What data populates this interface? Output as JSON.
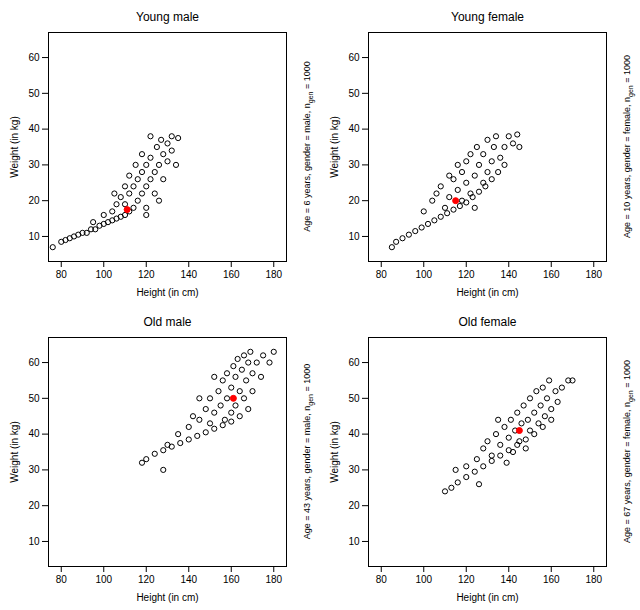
{
  "chart_data": [
    {
      "type": "scatter",
      "title": "Young male",
      "x_label": "Height (in cm)",
      "y_label": "Weight (in kg)",
      "annotation": {
        "text": "Age = 6 years, gender = male, n",
        "subscript": "gen",
        "after": " = 1000"
      },
      "xlim": [
        74,
        186
      ],
      "ylim": [
        3,
        67
      ],
      "xticks": [
        80,
        100,
        120,
        140,
        160,
        180
      ],
      "yticks": [
        10,
        20,
        30,
        40,
        50,
        60
      ],
      "series": [
        {
          "color": "black",
          "marker": "circle-open",
          "x": [
            76,
            80,
            82,
            84,
            86,
            88,
            90,
            92,
            94,
            96,
            98,
            100,
            102,
            104,
            106,
            108,
            110,
            112,
            95,
            100,
            104,
            106,
            108,
            110,
            112,
            114,
            114,
            116,
            116,
            118,
            118,
            120,
            120,
            120,
            122,
            122,
            124,
            124,
            125,
            126,
            127,
            128,
            128,
            130,
            130,
            132,
            132,
            134,
            135,
            115,
            118,
            112,
            110,
            105,
            122,
            126,
            120
          ],
          "values": [
            7,
            8.5,
            9,
            9.5,
            10,
            10.5,
            11,
            11,
            12,
            12,
            13,
            13.5,
            14,
            14.5,
            15,
            15.5,
            16,
            17,
            14,
            16,
            17,
            19,
            21,
            19,
            22,
            18,
            24,
            20,
            26,
            22,
            28,
            24,
            30,
            18,
            26,
            32,
            28,
            22,
            35,
            30,
            37,
            33,
            26,
            31,
            36,
            34,
            38,
            30,
            37.5,
            30,
            33,
            27,
            24,
            22,
            38,
            20,
            16
          ]
        },
        {
          "color": "red",
          "marker": "circle",
          "x": [
            111
          ],
          "values": [
            17.5
          ]
        }
      ]
    },
    {
      "type": "scatter",
      "title": "Young female",
      "x_label": "Height (in cm)",
      "y_label": "Weight (in kg)",
      "annotation": {
        "text": "Age = 10 years, gender = female, n",
        "subscript": "gen",
        "after": " = 1000"
      },
      "xlim": [
        74,
        186
      ],
      "ylim": [
        3,
        67
      ],
      "xticks": [
        80,
        100,
        120,
        140,
        160,
        180
      ],
      "yticks": [
        10,
        20,
        30,
        40,
        50,
        60
      ],
      "series": [
        {
          "color": "black",
          "marker": "circle-open",
          "x": [
            85,
            87,
            90,
            93,
            96,
            99,
            102,
            105,
            108,
            111,
            114,
            117,
            120,
            123,
            126,
            129,
            132,
            135,
            100,
            104,
            106,
            108,
            110,
            112,
            114,
            116,
            118,
            120,
            120,
            122,
            122,
            124,
            125,
            126,
            128,
            128,
            130,
            130,
            132,
            133,
            134,
            136,
            138,
            138,
            140,
            142,
            144,
            145,
            118,
            124,
            116,
            112
          ],
          "values": [
            7,
            8.5,
            9.5,
            10.5,
            11.5,
            12.5,
            13.5,
            14.5,
            15.5,
            16.5,
            17.5,
            18.5,
            19.5,
            21,
            22.5,
            24,
            26,
            28,
            17,
            20,
            22,
            24,
            18,
            21,
            26,
            23,
            28,
            25,
            31,
            22,
            33,
            27,
            35,
            30,
            25,
            33,
            37,
            28,
            31,
            35,
            38,
            32,
            35,
            30,
            38,
            36,
            38.5,
            35,
            20,
            18,
            30,
            27
          ]
        },
        {
          "color": "red",
          "marker": "circle",
          "x": [
            115
          ],
          "values": [
            20
          ]
        }
      ]
    },
    {
      "type": "scatter",
      "title": "Old male",
      "x_label": "Height (in cm)",
      "y_label": "Weight (in kg)",
      "annotation": {
        "text": "Age = 43 years, gender = male, n",
        "subscript": "gen",
        "after": " = 1000"
      },
      "xlim": [
        74,
        186
      ],
      "ylim": [
        3,
        67
      ],
      "xticks": [
        80,
        100,
        120,
        140,
        160,
        180
      ],
      "yticks": [
        10,
        20,
        30,
        40,
        50,
        60
      ],
      "series": [
        {
          "color": "black",
          "marker": "circle-open",
          "x": [
            118,
            120,
            124,
            128,
            132,
            136,
            140,
            144,
            148,
            152,
            156,
            160,
            164,
            168,
            130,
            135,
            140,
            142,
            145,
            148,
            150,
            150,
            152,
            154,
            155,
            156,
            157,
            158,
            158,
            160,
            160,
            161,
            162,
            162,
            163,
            164,
            165,
            166,
            166,
            167,
            168,
            169,
            170,
            170,
            172,
            174,
            175,
            178,
            180,
            128,
            145,
            152
          ],
          "values": [
            32,
            33,
            34.5,
            35.5,
            36.5,
            37.5,
            38.5,
            39.5,
            40.5,
            41.5,
            42.5,
            43.5,
            45,
            47,
            37,
            40,
            42,
            45,
            44,
            47,
            43,
            50,
            46,
            52,
            48,
            55,
            44,
            50,
            57,
            46,
            53,
            59,
            48,
            56,
            61,
            52,
            58,
            62,
            50,
            55,
            60,
            63,
            52,
            57,
            60,
            56,
            62,
            60,
            63,
            30,
            50,
            56
          ]
        },
        {
          "color": "red",
          "marker": "circle",
          "x": [
            161
          ],
          "values": [
            50
          ]
        }
      ]
    },
    {
      "type": "scatter",
      "title": "Old female",
      "x_label": "Height (in cm)",
      "y_label": "Weight (in kg)",
      "annotation": {
        "text": "Age = 67 years, gender = female, n",
        "subscript": "gen",
        "after": " = 1000"
      },
      "xlim": [
        74,
        186
      ],
      "ylim": [
        3,
        67
      ],
      "xticks": [
        80,
        100,
        120,
        140,
        160,
        180
      ],
      "yticks": [
        10,
        20,
        30,
        40,
        50,
        60
      ],
      "series": [
        {
          "color": "black",
          "marker": "circle-open",
          "x": [
            110,
            113,
            116,
            120,
            124,
            128,
            132,
            136,
            140,
            144,
            148,
            152,
            156,
            160,
            120,
            125,
            128,
            130,
            132,
            134,
            136,
            138,
            139,
            140,
            141,
            142,
            143,
            144,
            145,
            146,
            147,
            148,
            149,
            150,
            150,
            152,
            153,
            154,
            155,
            156,
            157,
            158,
            159,
            160,
            162,
            163,
            165,
            168,
            170,
            126,
            115,
            135
          ],
          "values": [
            24,
            25,
            26.5,
            28,
            29.5,
            31,
            32.5,
            34,
            35.5,
            37,
            38.5,
            40,
            42,
            44,
            31,
            33,
            36,
            38,
            34,
            40,
            37,
            42,
            32,
            39,
            44,
            35,
            41,
            46,
            38,
            43,
            48,
            36,
            44,
            50,
            41,
            46,
            52,
            43,
            48,
            53,
            45,
            50,
            55,
            47,
            52,
            49,
            53,
            55,
            55,
            26,
            30,
            44
          ]
        },
        {
          "color": "red",
          "marker": "circle",
          "x": [
            145
          ],
          "values": [
            41
          ]
        }
      ]
    }
  ]
}
